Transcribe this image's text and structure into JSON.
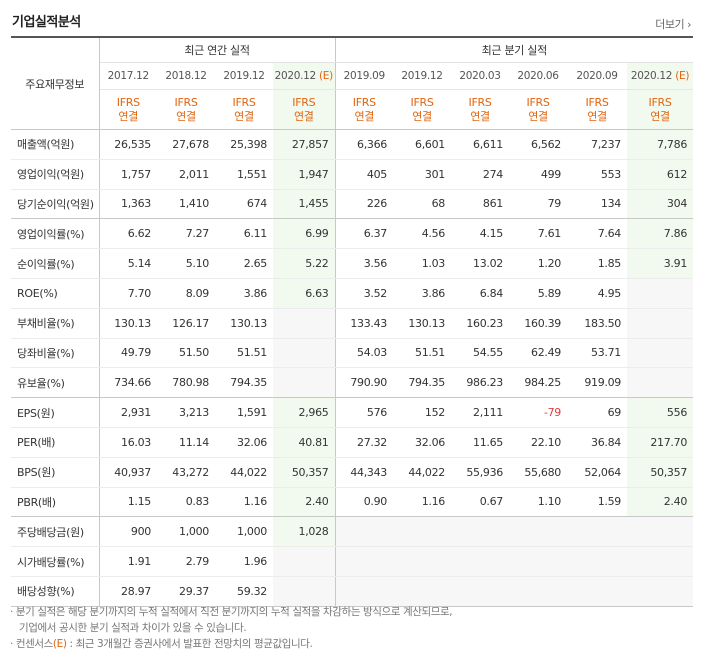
{
  "title": "기업실적분석",
  "more_label": "더보기",
  "corner_label": "주요재무정보",
  "annual_label": "최근 연간 실적",
  "quarter_label": "최근 분기 실적",
  "periods": [
    {
      "label": "2017.12",
      "est": false
    },
    {
      "label": "2018.12",
      "est": false
    },
    {
      "label": "2019.12",
      "est": false
    },
    {
      "label": "2020.12",
      "est": true
    },
    {
      "label": "2019.09",
      "est": false
    },
    {
      "label": "2019.12",
      "est": false
    },
    {
      "label": "2020.03",
      "est": false
    },
    {
      "label": "2020.06",
      "est": false
    },
    {
      "label": "2020.09",
      "est": false
    },
    {
      "label": "2020.12",
      "est": true
    }
  ],
  "est_mark": "(E)",
  "ifrs_line1": "IFRS",
  "ifrs_line2": "연결",
  "rows": [
    {
      "label": "매출액(억원)",
      "values": [
        "26,535",
        "27,678",
        "25,398",
        "27,857",
        "6,366",
        "6,601",
        "6,611",
        "6,562",
        "7,237",
        "7,786"
      ]
    },
    {
      "label": "영업이익(억원)",
      "values": [
        "1,757",
        "2,011",
        "1,551",
        "1,947",
        "405",
        "301",
        "274",
        "499",
        "553",
        "612"
      ]
    },
    {
      "label": "당기순이익(억원)",
      "values": [
        "1,363",
        "1,410",
        "674",
        "1,455",
        "226",
        "68",
        "861",
        "79",
        "134",
        "304"
      ]
    },
    {
      "label": "영업이익률(%)",
      "values": [
        "6.62",
        "7.27",
        "6.11",
        "6.99",
        "6.37",
        "4.56",
        "4.15",
        "7.61",
        "7.64",
        "7.86"
      ]
    },
    {
      "label": "순이익률(%)",
      "values": [
        "5.14",
        "5.10",
        "2.65",
        "5.22",
        "3.56",
        "1.03",
        "13.02",
        "1.20",
        "1.85",
        "3.91"
      ]
    },
    {
      "label": "ROE(%)",
      "values": [
        "7.70",
        "8.09",
        "3.86",
        "6.63",
        "3.52",
        "3.86",
        "6.84",
        "5.89",
        "4.95",
        ""
      ]
    },
    {
      "label": "부채비율(%)",
      "values": [
        "130.13",
        "126.17",
        "130.13",
        "",
        "133.43",
        "130.13",
        "160.23",
        "160.39",
        "183.50",
        ""
      ]
    },
    {
      "label": "당좌비율(%)",
      "values": [
        "49.79",
        "51.50",
        "51.51",
        "",
        "54.03",
        "51.51",
        "54.55",
        "62.49",
        "53.71",
        ""
      ]
    },
    {
      "label": "유보율(%)",
      "values": [
        "734.66",
        "780.98",
        "794.35",
        "",
        "790.90",
        "794.35",
        "986.23",
        "984.25",
        "919.09",
        ""
      ]
    },
    {
      "label": "EPS(원)",
      "values": [
        "2,931",
        "3,213",
        "1,591",
        "2,965",
        "576",
        "152",
        "2,111",
        "-79",
        "69",
        "556"
      ]
    },
    {
      "label": "PER(배)",
      "values": [
        "16.03",
        "11.14",
        "32.06",
        "40.81",
        "27.32",
        "32.06",
        "11.65",
        "22.10",
        "36.84",
        "217.70"
      ]
    },
    {
      "label": "BPS(원)",
      "values": [
        "40,937",
        "43,272",
        "44,022",
        "50,357",
        "44,343",
        "44,022",
        "55,936",
        "55,680",
        "52,064",
        "50,357"
      ]
    },
    {
      "label": "PBR(배)",
      "values": [
        "1.15",
        "0.83",
        "1.16",
        "2.40",
        "0.90",
        "1.16",
        "0.67",
        "1.10",
        "1.59",
        "2.40"
      ]
    },
    {
      "label": "주당배당금(원)",
      "values": [
        "900",
        "1,000",
        "1,000",
        "1,028",
        "",
        "",
        "",
        "",
        "",
        ""
      ]
    },
    {
      "label": "시가배당률(%)",
      "values": [
        "1.91",
        "2.79",
        "1.96",
        "",
        "",
        "",
        "",
        "",
        "",
        ""
      ]
    },
    {
      "label": "배당성향(%)",
      "values": [
        "28.97",
        "29.37",
        "59.32",
        "",
        "",
        "",
        "",
        "",
        "",
        ""
      ]
    }
  ],
  "notes": {
    "line1": "· 분기 실적은 해당 분기까지의 누적 실적에서 직전 분기까지의 누적 실적을 차감하는 방식으로 계산되므로,",
    "line2": "기업에서 공시한 분기 실적과 차이가 있을 수 있습니다.",
    "line3_prefix": "· 컨센서스",
    "line3_mark": "(E)",
    "line3_rest": " : 최근 3개월간 증권사에서 발표한 전망치의 평균값입니다."
  },
  "colors": {
    "estimate_bg": "#f2faf0",
    "accent": "#e2640e",
    "negative": "#e03a3a"
  }
}
